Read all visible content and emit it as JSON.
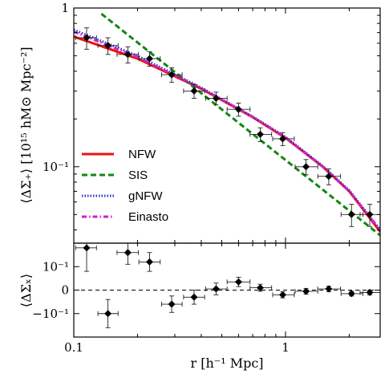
{
  "chart_data": {
    "type": "line",
    "x_scale": "log",
    "xlim": [
      0.1,
      2.8
    ],
    "xlabel": "r [h⁻¹ Mpc]",
    "x_ticks": [
      {
        "value": 0.1,
        "label": "0.1"
      },
      {
        "value": 1,
        "label": "1"
      }
    ],
    "top_panel": {
      "ylabel": "⟨ΔΣ₊⟩ [10¹⁵ hM⊙ Mpc⁻²]",
      "y_scale": "log",
      "ylim": [
        0.033,
        1.0
      ],
      "y_ticks": [
        {
          "value": 1,
          "label": "1"
        },
        {
          "value": 0.1,
          "label": "10⁻¹"
        }
      ],
      "data_points": {
        "x": [
          0.115,
          0.145,
          0.18,
          0.228,
          0.29,
          0.37,
          0.47,
          0.6,
          0.76,
          0.97,
          1.25,
          1.6,
          2.05,
          2.5
        ],
        "y": [
          0.65,
          0.58,
          0.51,
          0.48,
          0.38,
          0.3,
          0.27,
          0.23,
          0.16,
          0.15,
          0.1,
          0.087,
          0.05,
          0.05
        ],
        "yerr": [
          0.1,
          0.07,
          0.06,
          0.05,
          0.04,
          0.03,
          0.025,
          0.022,
          0.016,
          0.014,
          0.011,
          0.01,
          0.008,
          0.008
        ],
        "xerr_lo": [
          0.013,
          0.015,
          0.02,
          0.025,
          0.03,
          0.04,
          0.05,
          0.07,
          0.08,
          0.1,
          0.14,
          0.18,
          0.22,
          0.25
        ],
        "xerr_hi": [
          0.013,
          0.017,
          0.022,
          0.028,
          0.035,
          0.045,
          0.06,
          0.08,
          0.1,
          0.13,
          0.17,
          0.22,
          0.27,
          0.3
        ]
      },
      "series": [
        {
          "name": "NFW",
          "color": "#ee1111",
          "style": "solid",
          "x": [
            0.1,
            0.2,
            0.4,
            0.7,
            1.0,
            1.5,
            2.0,
            2.8
          ],
          "y": [
            0.66,
            0.48,
            0.31,
            0.205,
            0.152,
            0.1,
            0.07,
            0.039
          ]
        },
        {
          "name": "SIS",
          "color": "#118811",
          "style": "dashed",
          "x": [
            0.135,
            2.8
          ],
          "y": [
            0.92,
            0.037
          ]
        },
        {
          "name": "gNFW",
          "color": "#3333cc",
          "style": "dotted",
          "x": [
            0.1,
            0.2,
            0.4,
            0.7,
            1.0,
            1.5,
            2.0,
            2.8
          ],
          "y": [
            0.73,
            0.5,
            0.315,
            0.207,
            0.154,
            0.101,
            0.071,
            0.04
          ]
        },
        {
          "name": "Einasto",
          "color": "#cc22cc",
          "style": "dashdot",
          "x": [
            0.1,
            0.2,
            0.4,
            0.7,
            1.0,
            1.5,
            2.0,
            2.8
          ],
          "y": [
            0.71,
            0.49,
            0.312,
            0.206,
            0.153,
            0.1,
            0.07,
            0.04
          ]
        }
      ],
      "legend_position": "lower-left"
    },
    "bottom_panel": {
      "ylabel": "⟨ΔΣₓ⟩",
      "y_scale": "linear",
      "ylim": [
        -0.2,
        0.2
      ],
      "y_ticks": [
        {
          "value": 0.1,
          "label": "10⁻¹"
        },
        {
          "value": 0,
          "label": "0"
        },
        {
          "value": -0.1,
          "label": "−10⁻¹"
        }
      ],
      "reference_line": 0,
      "data_points": {
        "x": [
          0.115,
          0.145,
          0.18,
          0.228,
          0.29,
          0.37,
          0.47,
          0.6,
          0.76,
          0.97,
          1.25,
          1.6,
          2.05,
          2.5
        ],
        "y": [
          0.18,
          -0.1,
          0.16,
          0.12,
          -0.06,
          -0.03,
          0.005,
          0.035,
          0.01,
          -0.02,
          -0.005,
          0.005,
          -0.015,
          -0.01
        ],
        "yerr": [
          0.1,
          0.06,
          0.05,
          0.04,
          0.035,
          0.03,
          0.025,
          0.02,
          0.015,
          0.013,
          0.012,
          0.012,
          0.01,
          0.01
        ],
        "xerr_lo": [
          0.013,
          0.015,
          0.02,
          0.025,
          0.03,
          0.04,
          0.05,
          0.07,
          0.08,
          0.1,
          0.14,
          0.18,
          0.22,
          0.25
        ],
        "xerr_hi": [
          0.013,
          0.017,
          0.022,
          0.028,
          0.035,
          0.045,
          0.06,
          0.08,
          0.1,
          0.13,
          0.17,
          0.22,
          0.27,
          0.3
        ]
      }
    }
  }
}
